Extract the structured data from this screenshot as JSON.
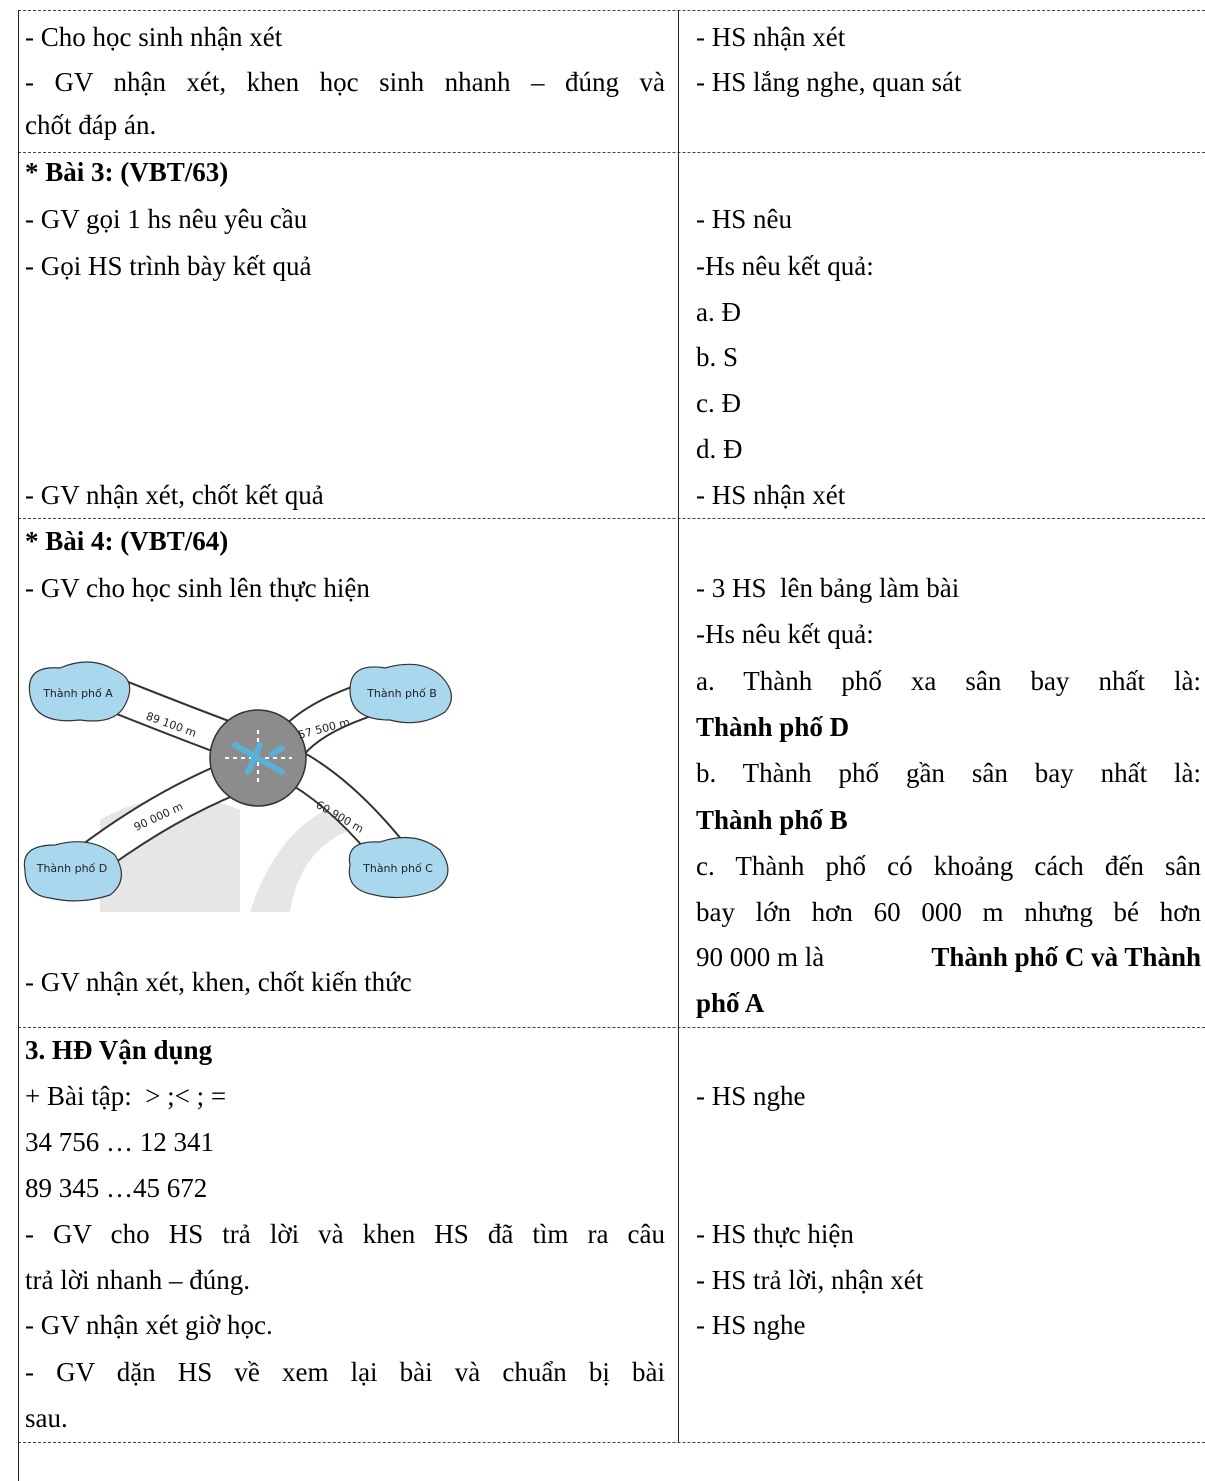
{
  "rows": [
    {
      "teacher": [
        "- Cho học sinh nhận xét",
        "- GV nhận xét, khen học sinh nhanh – đúng và",
        "chốt đáp án."
      ],
      "student": [
        "- HS nhận xét",
        "- HS lắng nghe, quan sát"
      ]
    },
    {
      "teacher": [
        "* Bài 3: (VBT/63)",
        "- GV gọi 1 hs nêu yêu cầu",
        "- Gọi HS trình bày kết quả",
        "- GV nhận xét, chốt kết quả"
      ],
      "student": [
        "- HS nêu",
        "-Hs nêu kết quả:",
        "a. Đ",
        "b. S",
        "c. Đ",
        "d. Đ",
        "- HS nhận xét"
      ]
    },
    {
      "teacher": [
        "* Bài 4: (VBT/64)",
        "- GV cho học sinh lên thực hiện",
        "- GV nhận xét, khen, chốt kiến thức"
      ],
      "figure": {
        "cities": [
          "Thành phố A",
          "Thành phố B",
          "Thành phố C",
          "Thành phố D"
        ],
        "distances": [
          "89 100 m",
          "57 500 m",
          "60 900 m",
          "90 000 m"
        ]
      },
      "student": [
        "- 3 HS  lên bảng làm bài",
        "-Hs nêu kết quả:",
        "a. Thành phố xa sân bay nhất là:",
        "Thành phố D",
        "b. Thành phố gần sân bay nhất là:",
        "Thành phố B",
        "c. Thành phố có khoảng cách đến sân",
        "bay lớn hơn 60 000 m nhưng bé hơn",
        [
          "90 000 m là ",
          "Thành phố C và Thành"
        ],
        "phố A"
      ]
    },
    {
      "teacher": [
        "3. HĐ Vận dụng",
        "+ Bài tập:  > ;< ; =",
        "34 756 … 12 341",
        "89 345 …45 672",
        "- GV cho HS trả lời và khen HS đã tìm ra câu",
        "trả lời nhanh – đúng.",
        "- GV nhận xét giờ học.",
        "- GV dặn HS về xem lại bài và chuẩn bị bài",
        "sau."
      ],
      "student": [
        "- HS nghe",
        "- HS thực hiện",
        "- HS trả lời, nhận xét",
        "- HS nghe"
      ]
    }
  ]
}
